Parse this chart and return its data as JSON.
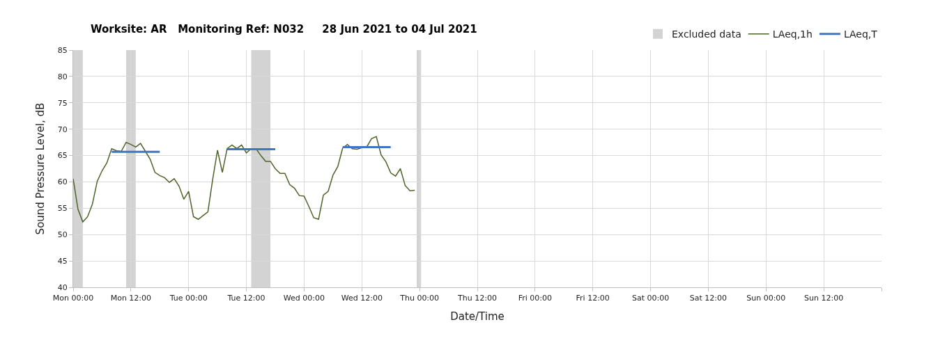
{
  "chart_data": {
    "type": "line",
    "title": "Worksite: AR   Monitoring Ref: N032     28 Jun 2021 to 04 Jul 2021",
    "xlabel": "Date/Time",
    "ylabel": "Sound Pressure Level, dB",
    "xlim": [
      "2021-06-28T00:00",
      "2021-07-05T00:00"
    ],
    "xticks": [
      {
        "value": "2021-06-28T00:00",
        "label": "Mon 00:00"
      },
      {
        "value": "2021-06-28T12:00",
        "label": "Mon 12:00"
      },
      {
        "value": "2021-06-29T00:00",
        "label": "Tue 00:00"
      },
      {
        "value": "2021-06-29T12:00",
        "label": "Tue 12:00"
      },
      {
        "value": "2021-06-30T00:00",
        "label": "Wed 00:00"
      },
      {
        "value": "2021-06-30T12:00",
        "label": "Wed 12:00"
      },
      {
        "value": "2021-07-01T00:00",
        "label": "Thu 00:00"
      },
      {
        "value": "2021-07-01T12:00",
        "label": "Thu 12:00"
      },
      {
        "value": "2021-07-02T00:00",
        "label": "Fri 00:00"
      },
      {
        "value": "2021-07-02T12:00",
        "label": "Fri 12:00"
      },
      {
        "value": "2021-07-03T00:00",
        "label": "Sat 00:00"
      },
      {
        "value": "2021-07-03T12:00",
        "label": "Sat 12:00"
      },
      {
        "value": "2021-07-04T00:00",
        "label": "Sun 00:00"
      },
      {
        "value": "2021-07-04T12:00",
        "label": "Sun 12:00"
      },
      {
        "value": "2021-07-05T00:00",
        "label": null
      }
    ],
    "ylim": [
      40,
      85
    ],
    "yticks": [
      40,
      45,
      50,
      55,
      60,
      65,
      70,
      75,
      80,
      85
    ],
    "grid": true,
    "legend": "top right",
    "series": [
      {
        "name": "LAeq,1h",
        "color": "#4f6228",
        "x": [
          "2021-06-28T00:00",
          "2021-06-28T01:00",
          "2021-06-28T02:00",
          "2021-06-28T03:00",
          "2021-06-28T04:00",
          "2021-06-28T05:00",
          "2021-06-28T06:00",
          "2021-06-28T07:00",
          "2021-06-28T08:00",
          "2021-06-28T09:00",
          "2021-06-28T10:00",
          "2021-06-28T11:00",
          "2021-06-28T12:00",
          "2021-06-28T13:00",
          "2021-06-28T14:00",
          "2021-06-28T15:00",
          "2021-06-28T16:00",
          "2021-06-28T17:00",
          "2021-06-28T18:00",
          "2021-06-28T19:00",
          "2021-06-28T20:00",
          "2021-06-28T21:00",
          "2021-06-28T22:00",
          "2021-06-28T23:00",
          "2021-06-29T00:00",
          "2021-06-29T01:00",
          "2021-06-29T02:00",
          "2021-06-29T03:00",
          "2021-06-29T04:00",
          "2021-06-29T05:00",
          "2021-06-29T06:00",
          "2021-06-29T07:00",
          "2021-06-29T08:00",
          "2021-06-29T09:00",
          "2021-06-29T10:00",
          "2021-06-29T11:00",
          "2021-06-29T12:00",
          "2021-06-29T13:00",
          "2021-06-29T14:00",
          "2021-06-29T15:00",
          "2021-06-29T16:00",
          "2021-06-29T17:00",
          "2021-06-29T18:00",
          "2021-06-29T19:00",
          "2021-06-29T20:00",
          "2021-06-29T21:00",
          "2021-06-29T22:00",
          "2021-06-29T23:00",
          "2021-06-30T00:00",
          "2021-06-30T01:00",
          "2021-06-30T02:00",
          "2021-06-30T03:00",
          "2021-06-30T04:00",
          "2021-06-30T05:00",
          "2021-06-30T06:00",
          "2021-06-30T07:00",
          "2021-06-30T08:00",
          "2021-06-30T09:00",
          "2021-06-30T10:00",
          "2021-06-30T11:00",
          "2021-06-30T12:00",
          "2021-06-30T13:00",
          "2021-06-30T14:00",
          "2021-06-30T15:00",
          "2021-06-30T16:00",
          "2021-06-30T17:00",
          "2021-06-30T18:00",
          "2021-06-30T19:00",
          "2021-06-30T20:00",
          "2021-06-30T21:00",
          "2021-06-30T22:00",
          "2021-06-30T23:00"
        ],
        "values": [
          60.6,
          54.8,
          52.4,
          53.4,
          55.8,
          60.1,
          62.1,
          63.6,
          66.3,
          65.9,
          65.8,
          67.5,
          67.1,
          66.6,
          67.3,
          65.8,
          64.3,
          61.8,
          61.2,
          60.8,
          59.9,
          60.6,
          59.2,
          56.7,
          58.2,
          53.4,
          52.9,
          53.6,
          54.3,
          60.5,
          66.0,
          61.8,
          66.3,
          67.0,
          66.3,
          67.0,
          65.5,
          66.3,
          66.3,
          65.0,
          63.9,
          63.9,
          62.5,
          61.6,
          61.6,
          59.5,
          58.8,
          57.4,
          57.3,
          55.3,
          53.2,
          52.9,
          57.5,
          58.2,
          61.3,
          62.9,
          66.4,
          67.1,
          66.3,
          66.2,
          66.5,
          66.6,
          68.2,
          68.6,
          65.1,
          63.8,
          61.7,
          61.1,
          62.5,
          59.3,
          58.3,
          58.4
        ]
      },
      {
        "name": "LAeq,T",
        "color": "#4472c4",
        "x": [
          "2021-06-28T08:00",
          "2021-06-28T18:00",
          "2021-06-29T01:00",
          "2021-06-29T08:00",
          "2021-06-29T18:00",
          "2021-06-30T01:00",
          "2021-06-30T08:00",
          "2021-06-30T18:00"
        ],
        "values": [
          65.7,
          65.7,
          null,
          66.2,
          66.2,
          null,
          66.6,
          66.6
        ]
      }
    ],
    "bands": [
      {
        "axis": "x",
        "from": "2021-06-28T00:00",
        "to": "2021-06-28T02:00",
        "label": "Excluded data",
        "color": "#d3d3d3"
      },
      {
        "axis": "x",
        "from": "2021-06-28T11:00",
        "to": "2021-06-28T13:00",
        "color": "#d3d3d3"
      },
      {
        "axis": "x",
        "from": "2021-06-29T13:00",
        "to": "2021-06-29T17:00",
        "color": "#d3d3d3"
      },
      {
        "axis": "x",
        "from": "2021-06-30T23:24",
        "to": "2021-07-01T00:18",
        "color": "#d3d3d3"
      }
    ]
  }
}
